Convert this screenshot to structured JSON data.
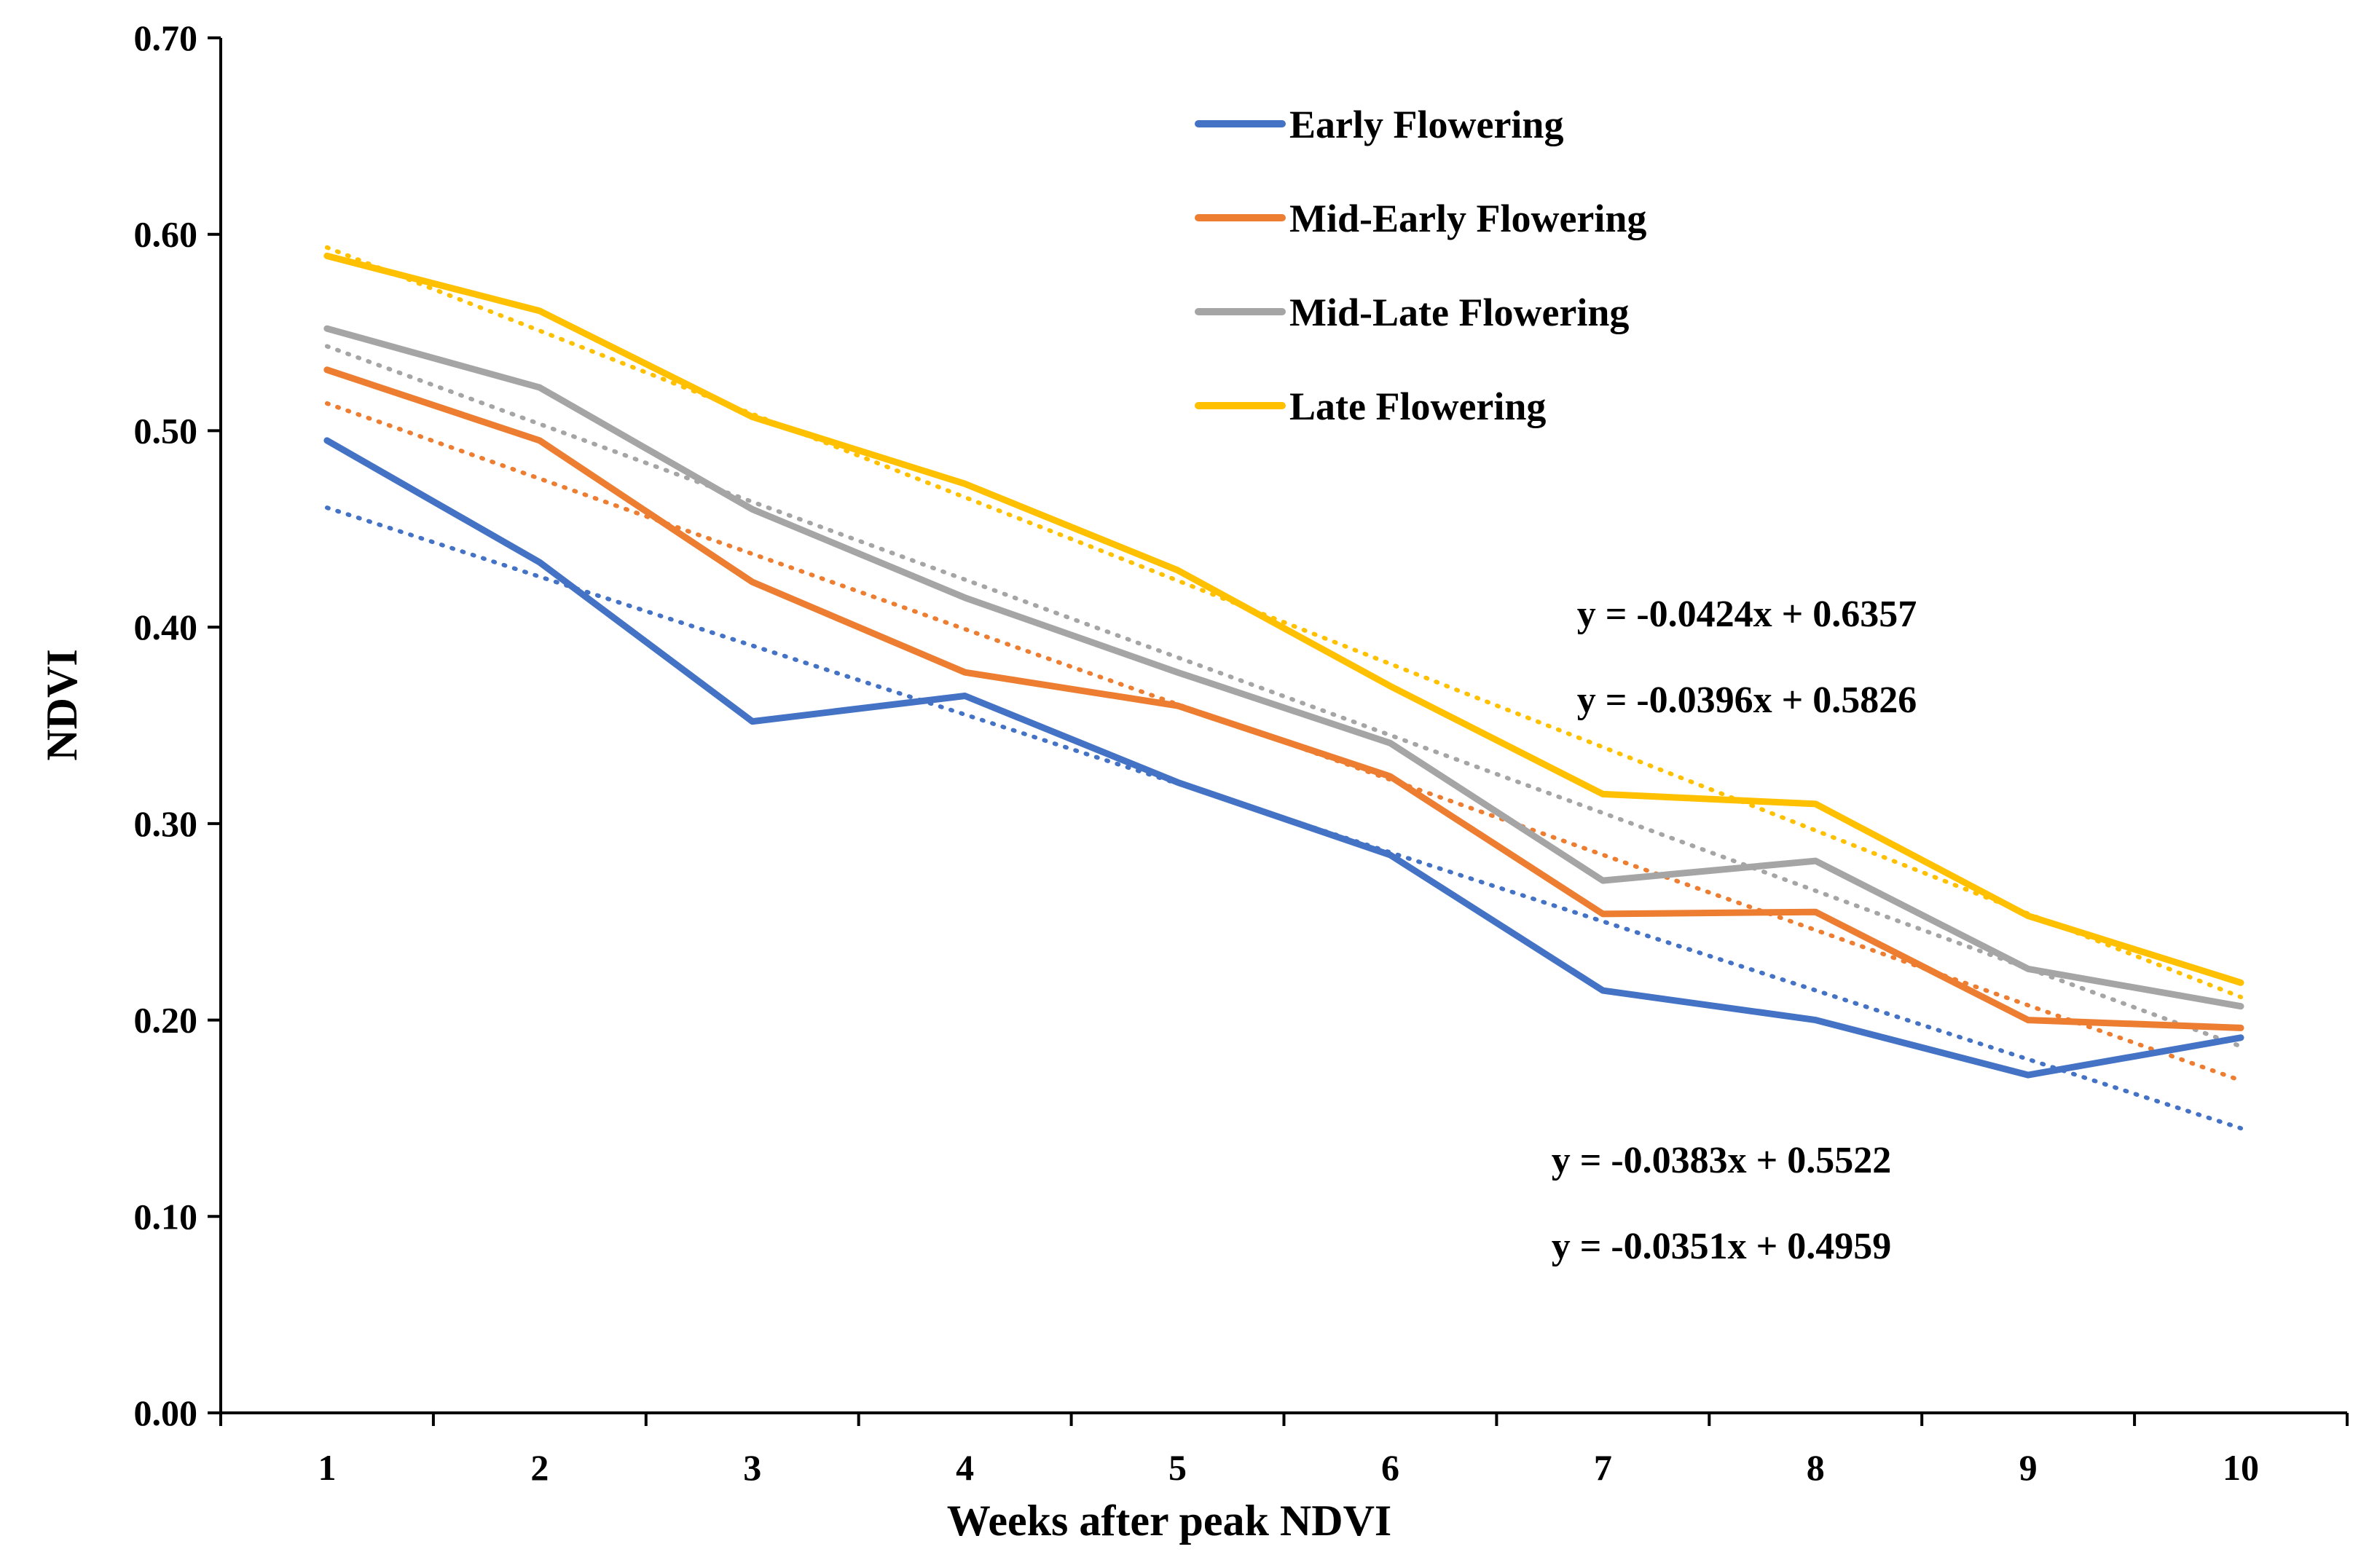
{
  "chart_data": {
    "type": "line",
    "title": "",
    "xlabel": "Weeks after peak NDVI",
    "ylabel": "NDVI",
    "x": [
      1,
      2,
      3,
      4,
      5,
      6,
      7,
      8,
      9,
      10
    ],
    "categories": [
      "1",
      "2",
      "3",
      "4",
      "5",
      "6",
      "7",
      "8",
      "9",
      "10"
    ],
    "ylim": [
      0,
      0.7
    ],
    "yticks": [
      "0.00",
      "0.10",
      "0.20",
      "0.30",
      "0.40",
      "0.50",
      "0.60",
      "0.70"
    ],
    "ytick_values": [
      0,
      0.1,
      0.2,
      0.3,
      0.4,
      0.5,
      0.6,
      0.7
    ],
    "grid": false,
    "legend_position": "top-center",
    "series": [
      {
        "name": "Early Flowering",
        "color": "#4472C4",
        "values": [
          0.495,
          0.433,
          0.352,
          0.365,
          0.321,
          0.284,
          0.215,
          0.2,
          0.172,
          0.191
        ],
        "trendline": {
          "slope": -0.0351,
          "intercept": 0.4959
        }
      },
      {
        "name": "Mid-Early Flowering",
        "color": "#ED7D31",
        "values": [
          0.531,
          0.495,
          0.423,
          0.377,
          0.36,
          0.324,
          0.254,
          0.255,
          0.2,
          0.196
        ],
        "trendline": {
          "slope": -0.0383,
          "intercept": 0.5522
        }
      },
      {
        "name": "Mid-Late Flowering",
        "color": "#A5A5A5",
        "values": [
          0.552,
          0.522,
          0.46,
          0.415,
          0.377,
          0.341,
          0.271,
          0.281,
          0.226,
          0.207
        ],
        "trendline": {
          "slope": -0.0396,
          "intercept": 0.5826
        }
      },
      {
        "name": "Late Flowering",
        "color": "#FFC000",
        "values": [
          0.589,
          0.561,
          0.507,
          0.473,
          0.429,
          0.37,
          0.315,
          0.31,
          0.253,
          0.219
        ],
        "trendline": {
          "slope": -0.0424,
          "intercept": 0.6357
        }
      }
    ],
    "annotations": [
      "y = -0.0424x + 0.6357",
      "y = -0.0396x + 0.5826",
      "y = -0.0383x + 0.5522",
      "y = -0.0351x + 0.4959"
    ]
  }
}
